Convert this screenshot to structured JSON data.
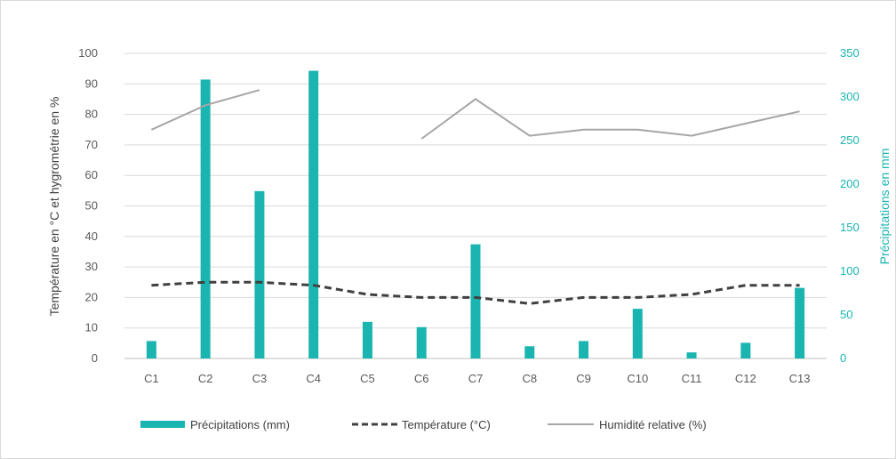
{
  "chart_data": {
    "type": "bar",
    "categories": [
      "C1",
      "C2",
      "C3",
      "C4",
      "C5",
      "C6",
      "C7",
      "C8",
      "C9",
      "C10",
      "C11",
      "C12",
      "C13"
    ],
    "ylabel": "Température en °C et hygrométrie en  %",
    "y2label": "Précipitations en mm",
    "ylim": [
      0,
      100
    ],
    "y2lim": [
      0,
      350
    ],
    "yticks": [
      "0",
      "10",
      "20",
      "30",
      "40",
      "50",
      "60",
      "70",
      "80",
      "90",
      "100"
    ],
    "y2ticks": [
      "0",
      "50",
      "100",
      "150",
      "200",
      "250",
      "300",
      "350"
    ],
    "grid": true,
    "legend_position": "bottom",
    "series": [
      {
        "name": "Précipitations (mm)",
        "kind": "bar",
        "axis": "right",
        "color": "#1ab5b0",
        "values": [
          20,
          320,
          192,
          330,
          42,
          36,
          131,
          14,
          20,
          57,
          7,
          18,
          81
        ]
      },
      {
        "name": "Température (°C)",
        "kind": "line",
        "style": "dashed",
        "axis": "left",
        "color": "#404040",
        "values": [
          24,
          25,
          25,
          24,
          21,
          20,
          20,
          18,
          20,
          20,
          21,
          24,
          24
        ]
      },
      {
        "name": "Humidité relative (%)",
        "kind": "line",
        "style": "solid",
        "axis": "left",
        "color": "#a6a6a6",
        "values": [
          75,
          83,
          88,
          null,
          null,
          72,
          85,
          73,
          75,
          75,
          73,
          77,
          81
        ]
      }
    ]
  }
}
